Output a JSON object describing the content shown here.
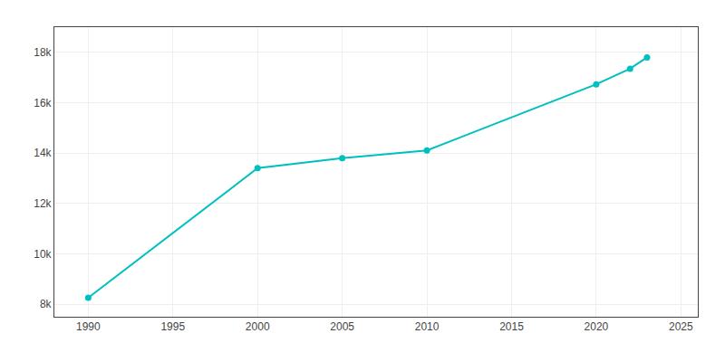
{
  "chart_data": {
    "type": "line",
    "x": [
      1990,
      2000,
      2005,
      2010,
      2020,
      2022,
      2023
    ],
    "values": [
      8253,
      13400,
      13800,
      14106,
      16730,
      17350,
      17800
    ],
    "color": "#00BFBF",
    "marker": "circle",
    "xlim": [
      1988,
      2026
    ],
    "xticks": [
      1990,
      1995,
      2000,
      2005,
      2010,
      2015,
      2020,
      2025
    ],
    "ylim": [
      7500,
      19000
    ],
    "yticks": [
      {
        "value": 8000,
        "label": "8k"
      },
      {
        "value": 10000,
        "label": "10k"
      },
      {
        "value": 12000,
        "label": "12k"
      },
      {
        "value": 14000,
        "label": "14k"
      },
      {
        "value": 16000,
        "label": "16k"
      },
      {
        "value": 18000,
        "label": "18k"
      }
    ],
    "grid": true
  }
}
